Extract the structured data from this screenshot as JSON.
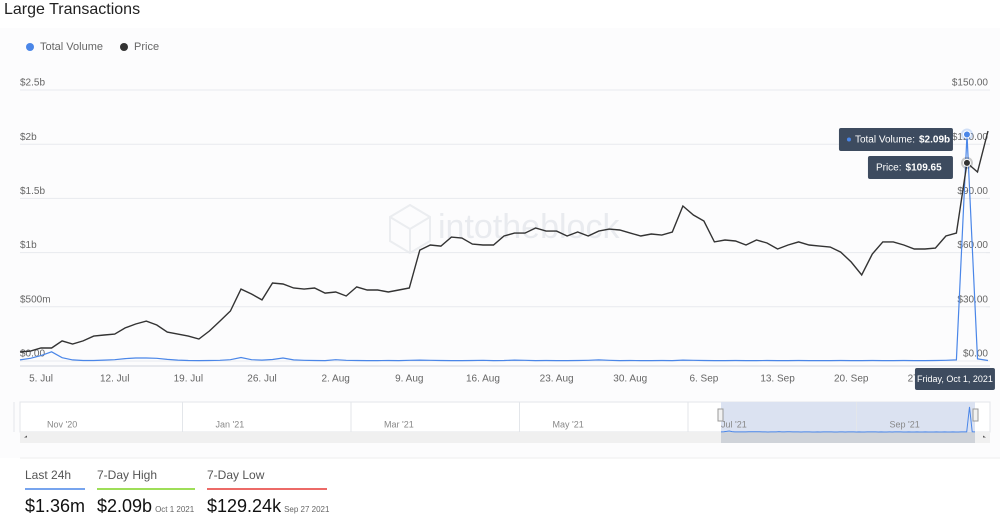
{
  "title": "Large Transactions",
  "chart_data": {
    "type": "line",
    "legend": "top-left",
    "grid": true,
    "watermark": "intotheblock",
    "categories": [
      null,
      null,
      "5. Jul",
      null,
      null,
      null,
      null,
      null,
      null,
      "12. Jul",
      null,
      null,
      null,
      null,
      null,
      null,
      "19. Jul",
      null,
      null,
      null,
      null,
      null,
      null,
      "26. Jul",
      null,
      null,
      null,
      null,
      null,
      null,
      "2. Aug",
      null,
      null,
      null,
      null,
      null,
      null,
      "9. Aug",
      null,
      null,
      null,
      null,
      null,
      null,
      "16. Aug",
      null,
      null,
      null,
      null,
      null,
      null,
      "23. Aug",
      null,
      null,
      null,
      null,
      null,
      null,
      "30. Aug",
      null,
      null,
      null,
      null,
      null,
      null,
      "6. Sep",
      null,
      null,
      null,
      null,
      null,
      null,
      "13. Sep",
      null,
      null,
      null,
      null,
      null,
      null,
      "20. Sep",
      null,
      null,
      null,
      null,
      null,
      null,
      "27. Sep",
      null,
      null,
      null,
      null,
      null,
      null
    ],
    "series": [
      {
        "name": "Total Volume",
        "color": "#4a86e8",
        "values": [
          0.01,
          0.025,
          0.05,
          0.085,
          0.03,
          0.01,
          0.005,
          0.005,
          0.008,
          0.012,
          0.022,
          0.028,
          0.028,
          0.025,
          0.015,
          0.008,
          0.005,
          0.004,
          0.005,
          0.006,
          0.012,
          0.032,
          0.012,
          0.008,
          0.014,
          0.028,
          0.01,
          0.006,
          0.005,
          0.004,
          0.012,
          0.006,
          0.005,
          0.004,
          0.004,
          0.005,
          0.004,
          0.006,
          0.008,
          0.006,
          0.005,
          0.004,
          0.004,
          0.005,
          0.006,
          0.004,
          0.005,
          0.008,
          0.006,
          0.004,
          0.005,
          0.004,
          0.004,
          0.005,
          0.006,
          0.01,
          0.006,
          0.004,
          0.005,
          0.004,
          0.004,
          0.005,
          0.004,
          0.008,
          0.006,
          0.005,
          0.004,
          0.004,
          0.005,
          0.004,
          0.004,
          0.005,
          0.004,
          0.004,
          0.005,
          0.004,
          0.004,
          0.004,
          0.005,
          0.004,
          0.004,
          0.005,
          0.004,
          0.004,
          0.005,
          0.004,
          0.004,
          0.005,
          0.006,
          0.01,
          2.09,
          0.02,
          0.005
        ]
      },
      {
        "name": "Price",
        "color": "#333333",
        "axis": "y2",
        "values": [
          5.0,
          5.5,
          7.2,
          7.2,
          11.1,
          9.4,
          11.1,
          13.8,
          14.4,
          14.9,
          18.3,
          20.5,
          22.1,
          19.9,
          16.0,
          14.9,
          13.8,
          12.2,
          16.6,
          22.1,
          27.7,
          39.8,
          37.1,
          33.8,
          43.2,
          42.6,
          40.4,
          39.8,
          40.4,
          37.6,
          38.2,
          36.0,
          41.0,
          39.3,
          39.3,
          38.2,
          39.3,
          40.4,
          61.4,
          64.2,
          63.6,
          68.6,
          68.1,
          64.7,
          64.2,
          64.2,
          69.2,
          70.8,
          70.8,
          73.6,
          71.9,
          71.9,
          69.2,
          71.4,
          69.2,
          71.9,
          73.0,
          72.5,
          70.8,
          69.2,
          70.3,
          69.7,
          71.4,
          85.8,
          80.8,
          77.5,
          65.9,
          67.0,
          66.4,
          64.2,
          67.0,
          65.3,
          62.0,
          64.2,
          65.9,
          64.2,
          63.6,
          63.1,
          60.3,
          54.8,
          47.6,
          59.2,
          65.9,
          65.9,
          64.2,
          62.0,
          62.0,
          62.5,
          69.2,
          70.8,
          109.65,
          104.6,
          127.3
        ]
      }
    ],
    "ylim": [
      0,
      2.5
    ],
    "yticks": [
      {
        "value": 0,
        "label": "$0.00"
      },
      {
        "value": 0.5,
        "label": "$500m"
      },
      {
        "value": 1,
        "label": "$1b"
      },
      {
        "value": 1.5,
        "label": "$1.5b"
      },
      {
        "value": 2,
        "label": "$2b"
      },
      {
        "value": 2.5,
        "label": "$2.5b"
      }
    ],
    "y2lim": [
      0,
      150
    ],
    "y2ticks": [
      {
        "value": 0,
        "label": "$0.00"
      },
      {
        "value": 30,
        "label": "$30.00"
      },
      {
        "value": 60,
        "label": "$60.00"
      },
      {
        "value": 90,
        "label": "$90.00"
      },
      {
        "value": 120,
        "label": "$120.00"
      },
      {
        "value": 150,
        "label": "$150.00"
      }
    ],
    "tooltip": {
      "date": "Friday, Oct 1, 2021",
      "items": [
        {
          "label": "Total Volume:",
          "value": 2.09,
          "value_label": "$2.09b"
        },
        {
          "label": "Price:",
          "value": 109.65,
          "value_label": "$109.65"
        }
      ]
    },
    "navigator": {
      "labels": [
        "Nov '20",
        "Jan '21",
        "Mar '21",
        "May '21",
        "Jul '21",
        "Sep '21"
      ]
    }
  },
  "summary": [
    {
      "label": "Last 24h",
      "value": "$1.36m",
      "color": "#4a86e8"
    },
    {
      "label": "7-Day High",
      "value": "$2.09b",
      "date": "Oct 1 2021",
      "color": "#7ed321"
    },
    {
      "label": "7-Day Low",
      "value": "$129.24k",
      "date": "Sep 27 2021",
      "color": "#e53935"
    }
  ]
}
